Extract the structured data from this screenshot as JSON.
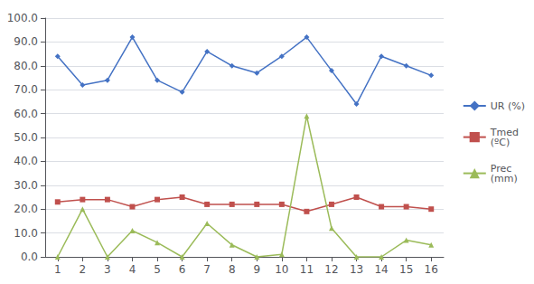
{
  "chart_data": {
    "type": "line",
    "x": [
      1,
      2,
      3,
      4,
      5,
      6,
      7,
      8,
      9,
      10,
      11,
      12,
      13,
      14,
      15,
      16
    ],
    "series": [
      {
        "name": "UR (%)",
        "color": "#4472C4",
        "marker": "diamond",
        "line_style": "solid",
        "values": [
          84,
          72,
          74,
          92,
          74,
          69,
          86,
          80,
          77,
          84,
          92,
          78,
          64,
          84,
          80,
          76
        ]
      },
      {
        "name": "Tmed\n(ºC)",
        "color": "#C0504D",
        "marker": "square",
        "line_style": "solid",
        "values": [
          23,
          24,
          24,
          21,
          24,
          25,
          22,
          22,
          22,
          22,
          19,
          22,
          25,
          21,
          21,
          20
        ]
      },
      {
        "name": "Prec\n(mm)",
        "color": "#9BBB59",
        "marker": "triangle",
        "line_style": "solid",
        "values": [
          0,
          20,
          0,
          11,
          6,
          0,
          14,
          5,
          0,
          1,
          59,
          12,
          0,
          0,
          7,
          5
        ]
      }
    ],
    "xlim": [
      0.5,
      16.5
    ],
    "xticks": [
      1,
      2,
      3,
      4,
      5,
      6,
      7,
      8,
      9,
      10,
      11,
      12,
      13,
      14,
      15,
      16
    ],
    "ylim": [
      0.0,
      100.0
    ],
    "yticks": [
      {
        "value": 0,
        "label": "0.0"
      },
      {
        "value": 10,
        "label": "10.0"
      },
      {
        "value": 20,
        "label": "20.0"
      },
      {
        "value": 30,
        "label": "30.0"
      },
      {
        "value": 40,
        "label": "40.0"
      },
      {
        "value": 50,
        "label": "50.0"
      },
      {
        "value": 60,
        "label": "60.0"
      },
      {
        "value": 70,
        "label": "70.0"
      },
      {
        "value": 80,
        "label": "80.0"
      },
      {
        "value": 90,
        "label": "90.0"
      },
      {
        "value": 100,
        "label": "100.0"
      }
    ],
    "grid": true,
    "legend": "right"
  }
}
